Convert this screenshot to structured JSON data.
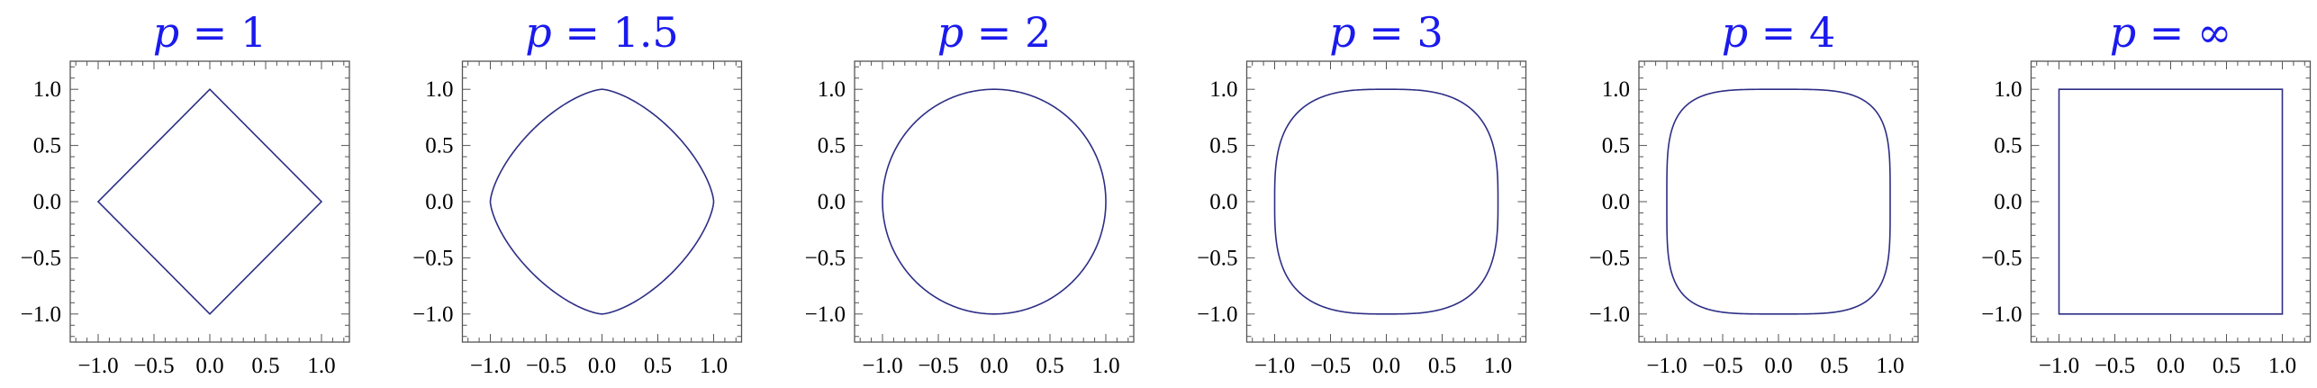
{
  "chart_data": [
    {
      "type": "line",
      "title": {
        "var": "p",
        "eq": " = ",
        "val": "1"
      },
      "p": 1,
      "xlim": [
        -1.25,
        1.25
      ],
      "ylim": [
        -1.25,
        1.25
      ],
      "xticks": [
        "−1.0",
        "−0.5",
        "0.0",
        "0.5",
        "1.0"
      ],
      "yticks": [
        "1.0",
        "0.5",
        "0.0",
        "−0.5",
        "−1.0"
      ],
      "tick_values": [
        -1,
        -0.5,
        0,
        0.5,
        1
      ],
      "grid": false
    },
    {
      "type": "line",
      "title": {
        "var": "p",
        "eq": " = ",
        "val": "1.5"
      },
      "p": 1.5,
      "xlim": [
        -1.25,
        1.25
      ],
      "ylim": [
        -1.25,
        1.25
      ],
      "xticks": [
        "−1.0",
        "−0.5",
        "0.0",
        "0.5",
        "1.0"
      ],
      "yticks": [
        "1.0",
        "0.5",
        "0.0",
        "−0.5",
        "−1.0"
      ],
      "tick_values": [
        -1,
        -0.5,
        0,
        0.5,
        1
      ],
      "grid": false
    },
    {
      "type": "line",
      "title": {
        "var": "p",
        "eq": " = ",
        "val": "2"
      },
      "p": 2,
      "xlim": [
        -1.25,
        1.25
      ],
      "ylim": [
        -1.25,
        1.25
      ],
      "xticks": [
        "−1.0",
        "−0.5",
        "0.0",
        "0.5",
        "1.0"
      ],
      "yticks": [
        "1.0",
        "0.5",
        "0.0",
        "−0.5",
        "−1.0"
      ],
      "tick_values": [
        -1,
        -0.5,
        0,
        0.5,
        1
      ],
      "grid": false
    },
    {
      "type": "line",
      "title": {
        "var": "p",
        "eq": " = ",
        "val": "3"
      },
      "p": 3,
      "xlim": [
        -1.25,
        1.25
      ],
      "ylim": [
        -1.25,
        1.25
      ],
      "xticks": [
        "−1.0",
        "−0.5",
        "0.0",
        "0.5",
        "1.0"
      ],
      "yticks": [
        "1.0",
        "0.5",
        "0.0",
        "−0.5",
        "−1.0"
      ],
      "tick_values": [
        -1,
        -0.5,
        0,
        0.5,
        1
      ],
      "grid": false
    },
    {
      "type": "line",
      "title": {
        "var": "p",
        "eq": " = ",
        "val": "4"
      },
      "p": 4,
      "xlim": [
        -1.25,
        1.25
      ],
      "ylim": [
        -1.25,
        1.25
      ],
      "xticks": [
        "−1.0",
        "−0.5",
        "0.0",
        "0.5",
        "1.0"
      ],
      "yticks": [
        "1.0",
        "0.5",
        "0.0",
        "−0.5",
        "−1.0"
      ],
      "tick_values": [
        -1,
        -0.5,
        0,
        0.5,
        1
      ],
      "grid": false
    },
    {
      "type": "line",
      "title": {
        "var": "p",
        "eq": " = ",
        "val": "∞"
      },
      "p": "infinity",
      "xlim": [
        -1.25,
        1.25
      ],
      "ylim": [
        -1.25,
        1.25
      ],
      "xticks": [
        "−1.0",
        "−0.5",
        "0.0",
        "0.5",
        "1.0"
      ],
      "yticks": [
        "1.0",
        "0.5",
        "0.0",
        "−0.5",
        "−1.0"
      ],
      "tick_values": [
        -1,
        -0.5,
        0,
        0.5,
        1
      ],
      "grid": false
    }
  ],
  "colors": {
    "curve": "#2e2e86",
    "title": "#1a1aee",
    "frame": "#555555"
  }
}
